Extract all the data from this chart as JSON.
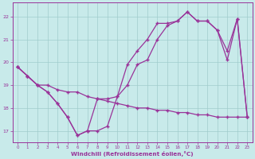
{
  "line1_x": [
    0,
    1,
    2,
    3,
    4,
    5,
    6,
    7,
    8,
    9,
    10,
    11,
    12,
    13,
    14,
    15,
    16,
    17,
    18,
    19,
    20,
    21,
    22,
    23
  ],
  "line1_y": [
    19.8,
    19.4,
    19.0,
    19.0,
    18.8,
    18.7,
    18.7,
    18.5,
    18.4,
    18.3,
    18.2,
    18.1,
    18.0,
    18.0,
    17.9,
    17.9,
    17.8,
    17.8,
    17.7,
    17.7,
    17.6,
    17.6,
    17.6,
    17.6
  ],
  "line2_x": [
    0,
    1,
    2,
    3,
    4,
    5,
    6,
    7,
    8,
    9,
    10,
    11,
    12,
    13,
    14,
    15,
    16,
    17,
    18,
    19,
    20,
    21,
    22,
    23
  ],
  "line2_y": [
    19.8,
    19.4,
    19.0,
    18.7,
    18.2,
    17.6,
    16.8,
    17.0,
    17.0,
    17.2,
    18.5,
    19.9,
    20.5,
    21.0,
    21.7,
    21.7,
    21.8,
    22.2,
    21.8,
    21.8,
    21.4,
    20.1,
    21.9,
    17.6
  ],
  "line3_x": [
    0,
    1,
    2,
    3,
    4,
    5,
    6,
    7,
    8,
    9,
    10,
    11,
    12,
    13,
    14,
    15,
    16,
    17,
    18,
    19,
    20,
    21,
    22,
    23
  ],
  "line3_y": [
    19.8,
    19.4,
    19.0,
    18.7,
    18.2,
    17.6,
    16.8,
    17.0,
    18.4,
    18.4,
    18.5,
    19.0,
    19.9,
    20.1,
    21.0,
    21.6,
    21.8,
    22.2,
    21.8,
    21.8,
    21.4,
    20.5,
    21.9,
    17.6
  ],
  "color": "#993399",
  "bg_color": "#c8eaea",
  "grid_color": "#a0cccc",
  "xlabel": "Windchill (Refroidissement éolien,°C)",
  "ylim": [
    16.5,
    22.6
  ],
  "xlim": [
    -0.5,
    23.5
  ],
  "yticks": [
    17,
    18,
    19,
    20,
    21,
    22
  ],
  "xticks": [
    0,
    1,
    2,
    3,
    4,
    5,
    6,
    7,
    8,
    9,
    10,
    11,
    12,
    13,
    14,
    15,
    16,
    17,
    18,
    19,
    20,
    21,
    22,
    23
  ]
}
